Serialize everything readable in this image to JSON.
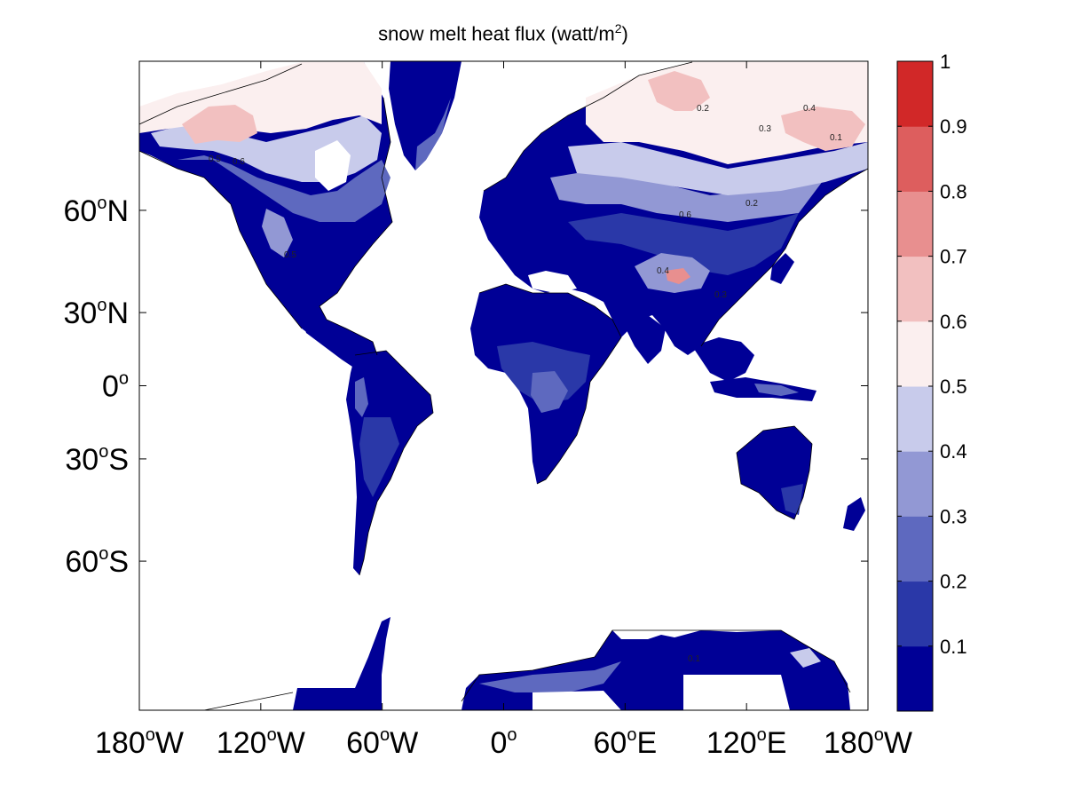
{
  "title": {
    "main": "snow melt heat flux (watt/m",
    "sup": "2",
    "close": ")"
  },
  "map": {
    "projection": "mercator",
    "lon_range": [
      -180,
      180
    ],
    "lat_range": [
      -80,
      80
    ],
    "ocean_color": "#ffffff",
    "x_ticks": [
      {
        "lon": -180,
        "label": "180",
        "hemi": "W"
      },
      {
        "lon": -120,
        "label": "120",
        "hemi": "W"
      },
      {
        "lon": -60,
        "label": "60",
        "hemi": "W"
      },
      {
        "lon": 0,
        "label": "0",
        "hemi": ""
      },
      {
        "lon": 60,
        "label": "60",
        "hemi": "E"
      },
      {
        "lon": 120,
        "label": "120",
        "hemi": "E"
      },
      {
        "lon": 180,
        "label": "180",
        "hemi": "W"
      }
    ],
    "y_ticks": [
      {
        "lat": 60,
        "label": "60",
        "hemi": "N"
      },
      {
        "lat": 30,
        "label": "30",
        "hemi": "N"
      },
      {
        "lat": 0,
        "label": "0",
        "hemi": ""
      },
      {
        "lat": -30,
        "label": "30",
        "hemi": "S"
      },
      {
        "lat": -60,
        "label": "60",
        "hemi": "S"
      }
    ],
    "contour_labels": [
      "0.5",
      "0.6",
      "0.2",
      "0.4",
      "0.3",
      "0.1"
    ]
  },
  "colorbar": {
    "levels": [
      0.1,
      0.2,
      0.3,
      0.4,
      0.5,
      0.6,
      0.7,
      0.8,
      0.9,
      1
    ],
    "labels": [
      "0.1",
      "0.2",
      "0.3",
      "0.4",
      "0.5",
      "0.6",
      "0.7",
      "0.8",
      "0.9",
      "1"
    ],
    "colors": [
      "#000096",
      "#2a38a8",
      "#5e69bf",
      "#9298d4",
      "#c8cbeb",
      "#fbefef",
      "#f2c0c0",
      "#e88f8f",
      "#dd5e5e",
      "#d12828"
    ]
  }
}
